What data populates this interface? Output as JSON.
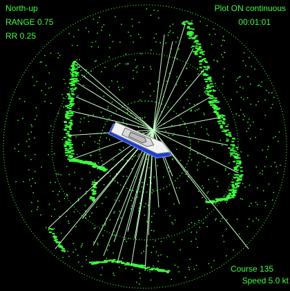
{
  "header": {
    "mode": "North-up",
    "range": "RANGE 0.75",
    "range_rings": "RR 0.25"
  },
  "status": {
    "plot": "Plot ON continuous",
    "time": "00:01:01"
  },
  "footer": {
    "course": "Course 135",
    "speed": "Speed 5.0 kt"
  }
}
